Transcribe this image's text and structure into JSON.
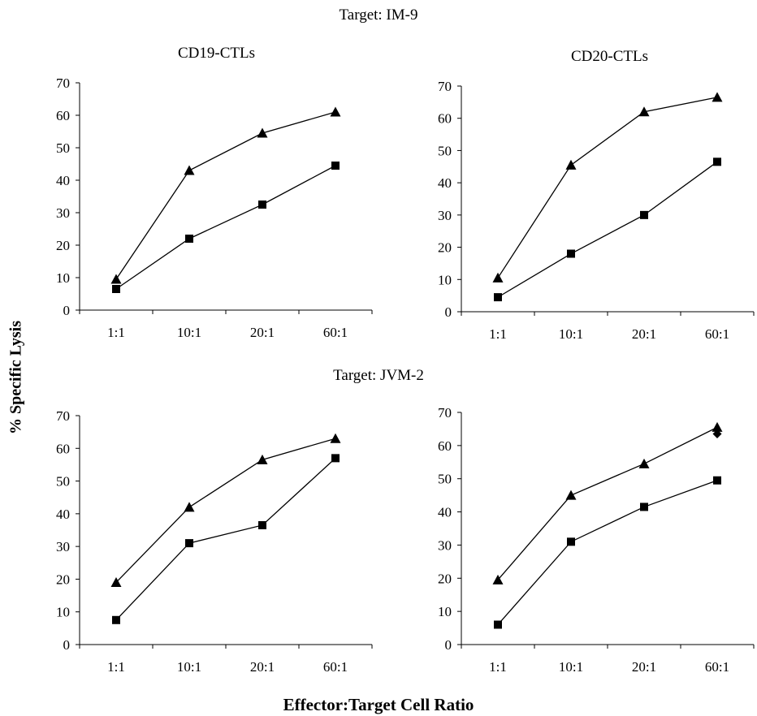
{
  "figure": {
    "top_title": "Target: IM-9",
    "middle_title": "Target: JVM-2",
    "subtitle_left": "CD19-CTLs",
    "subtitle_right": "CD20-CTLs",
    "ylabel": "% Specific Lysis",
    "xlabel": "Effector:Target Cell Ratio"
  },
  "chart_data": [
    {
      "type": "line",
      "target": "IM-9",
      "panel_label": "CD19-CTLs",
      "categories": [
        "1:1",
        "10:1",
        "20:1",
        "60:1"
      ],
      "ylim": [
        0,
        70
      ],
      "yticks": [
        0,
        10,
        20,
        30,
        40,
        50,
        60,
        70
      ],
      "series": [
        {
          "marker": "triangle",
          "values": [
            9.5,
            43,
            54.5,
            61
          ]
        },
        {
          "marker": "square",
          "values": [
            6.5,
            22,
            32.5,
            44.5
          ]
        }
      ]
    },
    {
      "type": "line",
      "target": "IM-9",
      "panel_label": "CD20-CTLs",
      "categories": [
        "1:1",
        "10:1",
        "20:1",
        "60:1"
      ],
      "ylim": [
        0,
        70
      ],
      "yticks": [
        0,
        10,
        20,
        30,
        40,
        50,
        60,
        70
      ],
      "series": [
        {
          "marker": "triangle",
          "values": [
            10.5,
            45.5,
            62,
            66.5
          ]
        },
        {
          "marker": "square",
          "values": [
            4.5,
            18,
            30,
            46.5
          ]
        }
      ]
    },
    {
      "type": "line",
      "target": "JVM-2",
      "panel_label": "",
      "categories": [
        "1:1",
        "10:1",
        "20:1",
        "60:1"
      ],
      "ylim": [
        0,
        70
      ],
      "yticks": [
        0,
        10,
        20,
        30,
        40,
        50,
        60,
        70
      ],
      "series": [
        {
          "marker": "triangle",
          "values": [
            19,
            42,
            56.5,
            63
          ]
        },
        {
          "marker": "square",
          "values": [
            7.5,
            31,
            36.5,
            57
          ]
        }
      ]
    },
    {
      "type": "line",
      "target": "JVM-2",
      "panel_label": "",
      "categories": [
        "1:1",
        "10:1",
        "20:1",
        "60:1"
      ],
      "ylim": [
        0,
        70
      ],
      "yticks": [
        0,
        10,
        20,
        30,
        40,
        50,
        60,
        70
      ],
      "series": [
        {
          "marker": "triangle",
          "values": [
            19.5,
            45,
            54.5,
            65.5
          ]
        },
        {
          "marker": "square",
          "values": [
            6,
            31,
            41.5,
            49.5
          ]
        }
      ],
      "extra_markers": [
        {
          "marker": "diamond",
          "category": "60:1",
          "value": 63.5
        }
      ]
    }
  ]
}
